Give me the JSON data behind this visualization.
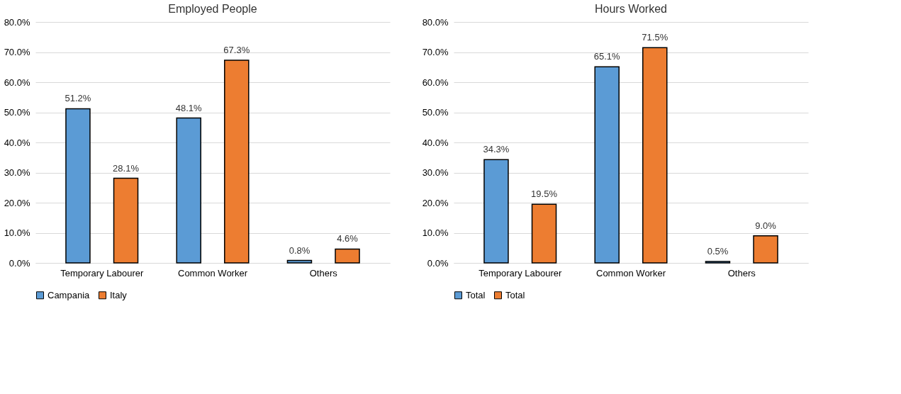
{
  "chart_data": [
    {
      "type": "bar",
      "title": "Employed People",
      "categories": [
        "Temporary Labourer",
        "Common Worker",
        "Others"
      ],
      "series": [
        {
          "name": "Campania",
          "color": "#5b9bd5",
          "values": [
            51.2,
            48.1,
            0.8
          ],
          "value_labels": [
            "51.2%",
            "48.1%",
            "0.8%"
          ]
        },
        {
          "name": "Italy",
          "color": "#ed7d31",
          "values": [
            28.1,
            67.3,
            4.6
          ],
          "value_labels": [
            "28.1%",
            "67.3%",
            "4.6%"
          ]
        }
      ],
      "ylim": [
        0,
        80
      ],
      "yticks": [
        {
          "value": 0,
          "label": "0.0%"
        },
        {
          "value": 10,
          "label": "10.0%"
        },
        {
          "value": 20,
          "label": "20.0%"
        },
        {
          "value": 30,
          "label": "30.0%"
        },
        {
          "value": 40,
          "label": "40.0%"
        },
        {
          "value": 50,
          "label": "50.0%"
        },
        {
          "value": 60,
          "label": "60.0%"
        },
        {
          "value": 70,
          "label": "70.0%"
        },
        {
          "value": 80,
          "label": "80.0%"
        }
      ],
      "grid": "y",
      "legend": "bottom"
    },
    {
      "type": "bar",
      "title": "Hours Worked",
      "categories": [
        "Temporary Labourer",
        "Common Worker",
        "Others"
      ],
      "series": [
        {
          "name": "Total",
          "color": "#5b9bd5",
          "values": [
            34.3,
            65.1,
            0.5
          ],
          "value_labels": [
            "34.3%",
            "65.1%",
            "0.5%"
          ]
        },
        {
          "name": "Total",
          "color": "#ed7d31",
          "values": [
            19.5,
            71.5,
            9.0
          ],
          "value_labels": [
            "19.5%",
            "71.5%",
            "9.0%"
          ]
        }
      ],
      "ylim": [
        0,
        80
      ],
      "yticks": [
        {
          "value": 0,
          "label": "0.0%"
        },
        {
          "value": 10,
          "label": "10.0%"
        },
        {
          "value": 20,
          "label": "20.0%"
        },
        {
          "value": 30,
          "label": "30.0%"
        },
        {
          "value": 40,
          "label": "40.0%"
        },
        {
          "value": 50,
          "label": "50.0%"
        },
        {
          "value": 60,
          "label": "60.0%"
        },
        {
          "value": 70,
          "label": "70.0%"
        },
        {
          "value": 80,
          "label": "80.0%"
        }
      ],
      "grid": "y",
      "legend": "bottom"
    }
  ]
}
